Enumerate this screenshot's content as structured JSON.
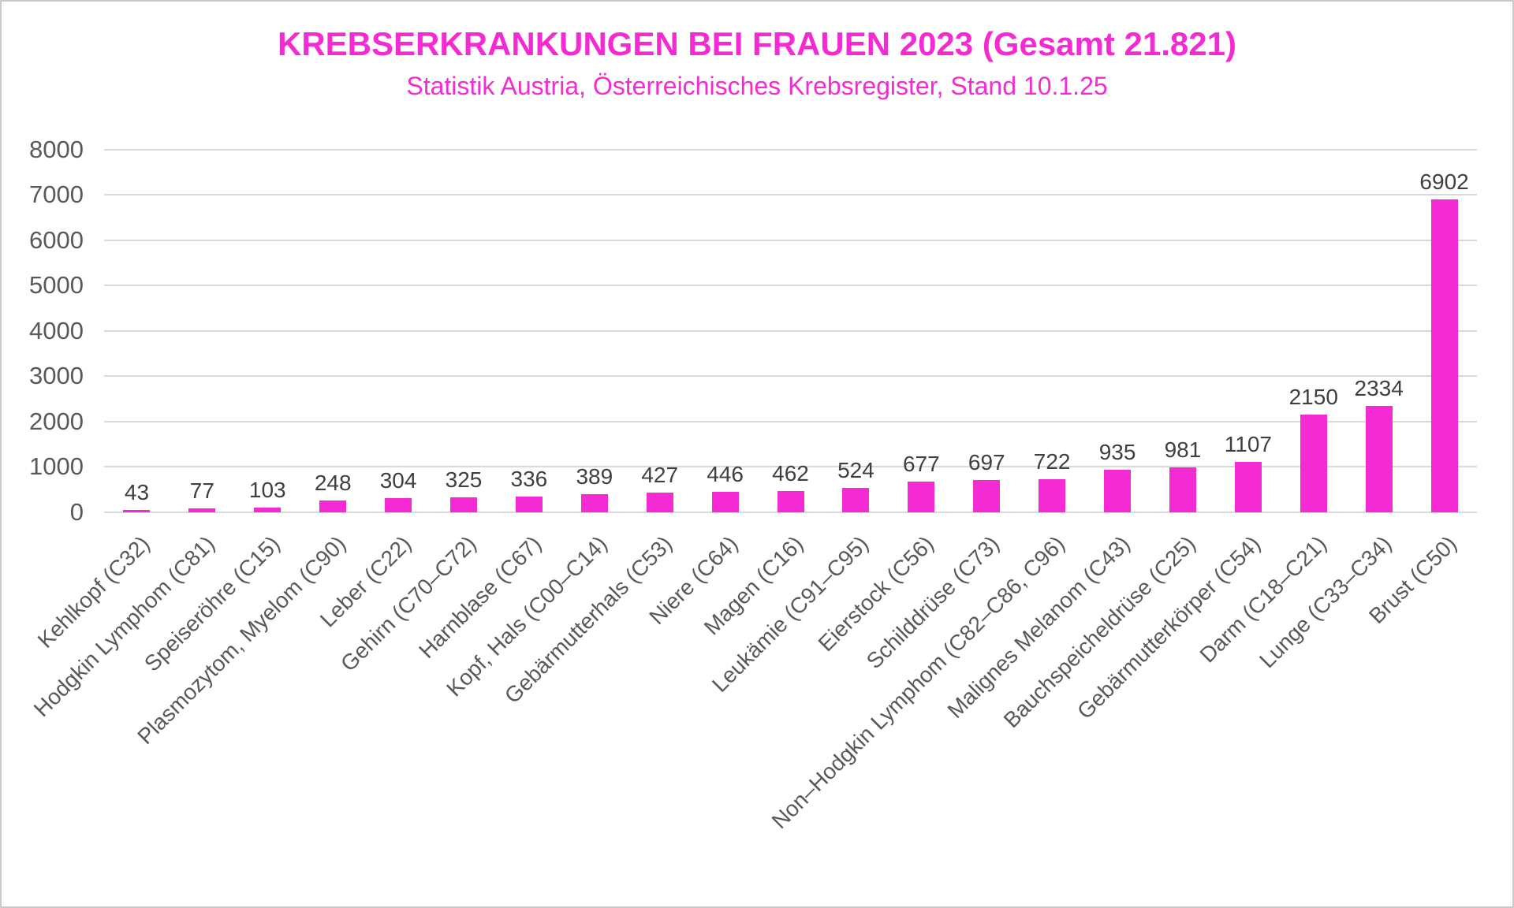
{
  "header": {
    "title": "KREBSERKRANKUNGEN BEI FRAUEN 2023 (Gesamt 21.821)",
    "subtitle": "Statistik Austria, Österreichisches Krebsregister, Stand 10.1.25"
  },
  "colors": {
    "accent_magenta": "#f42bd3",
    "title_text": "#f42bd3",
    "bar_fill": "#f42bd3",
    "gridline": "#d9d9d9",
    "axis_text": "#595959",
    "value_label_text": "#3f3f3f",
    "canvas_border": "#c9c9c9",
    "background": "#ffffff"
  },
  "chart_data": {
    "type": "bar",
    "title": "KREBSERKRANKUNGEN BEI FRAUEN 2023 (Gesamt 21.821)",
    "subtitle": "Statistik Austria, Österreichisches Krebsregister, Stand 10.1.25",
    "total": "21.821",
    "categories": [
      "Kehlkopf (C32)",
      "Hodgkin Lymphom (C81)",
      "Speiseröhre (C15)",
      "Plasmozytom, Myelom (C90)",
      "Leber (C22)",
      "Gehirn (C70–C72)",
      "Harnblase (C67)",
      "Kopf, Hals (C00–C14)",
      "Gebärmutterhals (C53)",
      "Niere (C64)",
      "Magen (C16)",
      "Leukämie (C91–C95)",
      "Eierstock (C56)",
      "Schilddrüse (C73)",
      "Non–Hodgkin Lymphom (C82–C86, C96)",
      "Malignes Melanom (C43)",
      "Bauchspeicheldrüse (C25)",
      "Gebärmutterkörper (C54)",
      "Darm (C18–C21)",
      "Lunge (C33–C34)",
      "Brust (C50)"
    ],
    "values": [
      43,
      77,
      103,
      248,
      304,
      325,
      336,
      389,
      427,
      446,
      462,
      524,
      677,
      697,
      722,
      935,
      981,
      1107,
      2150,
      2334,
      6902
    ],
    "xlabel": "",
    "ylabel": "",
    "ylim": [
      0,
      8000
    ],
    "yticks": [
      0,
      1000,
      2000,
      3000,
      4000,
      5000,
      6000,
      7000,
      8000
    ],
    "grid": "horizontal",
    "legend": "none",
    "value_labels_shown": true,
    "bar_color": "#f42bd3"
  }
}
